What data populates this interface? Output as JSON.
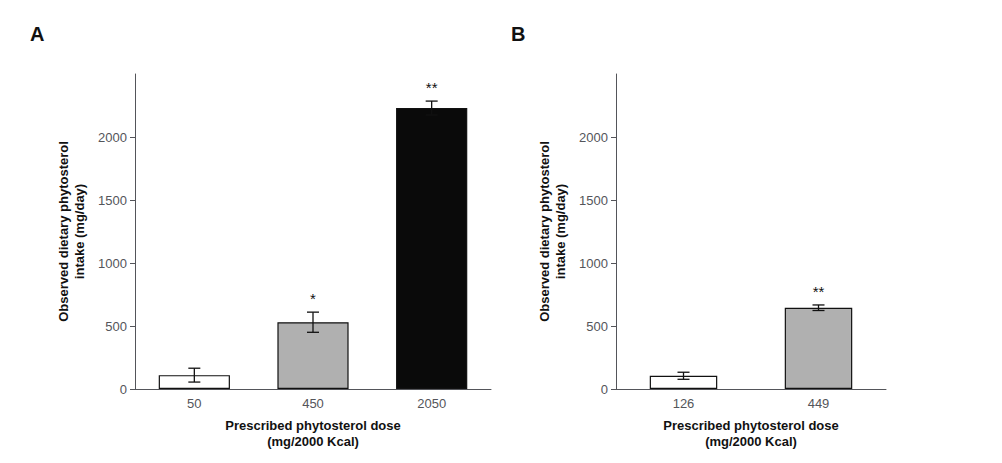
{
  "chart_data": [
    {
      "type": "bar",
      "title": "A",
      "categories": [
        "50",
        "450",
        "2050"
      ],
      "values": [
        110,
        530,
        2230
      ],
      "errors": [
        55,
        80,
        55
      ],
      "colors": [
        "#ffffff",
        "#b0b0b0",
        "#0a0a0a"
      ],
      "annotations": [
        {
          "category": "450",
          "text": "*"
        },
        {
          "category": "2050",
          "text": "**"
        }
      ],
      "xlabel": "Prescribed phytosterol dose\n(mg/2000 Kcal)",
      "ylabel": "Observed dietary phytosterol\nintake (mg/day)",
      "ylim": [
        0,
        2500
      ],
      "yticks": [
        0,
        500,
        1000,
        1500,
        2000
      ],
      "grid": false
    },
    {
      "type": "bar",
      "title": "B",
      "categories": [
        "126",
        "449"
      ],
      "values": [
        105,
        645
      ],
      "errors": [
        28,
        22
      ],
      "colors": [
        "#ffffff",
        "#b0b0b0"
      ],
      "annotations": [
        {
          "category": "449",
          "text": "**"
        }
      ],
      "xlabel": "Prescribed phytosterol dose\n(mg/2000 Kcal)",
      "ylabel": "Observed dietary phytosterol\nintake (mg/day)",
      "ylim": [
        0,
        2500
      ],
      "yticks": [
        0,
        500,
        1000,
        1500,
        2000
      ],
      "grid": false
    }
  ]
}
